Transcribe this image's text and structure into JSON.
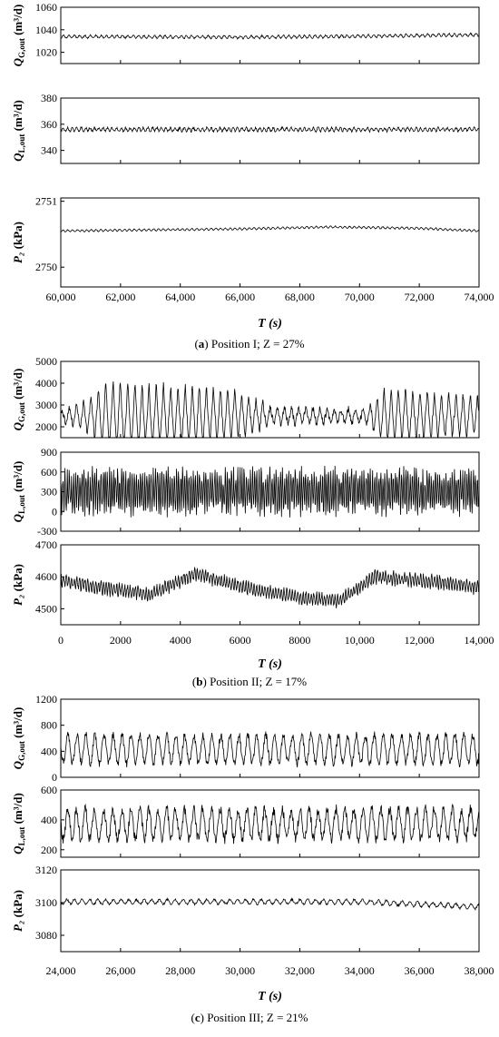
{
  "chart_data": [
    {
      "type": "line",
      "panel": "a",
      "caption": {
        "letter": "a",
        "text": "Position I; Z = 27%"
      },
      "xlabel": "T (s)",
      "xlim": [
        60000,
        74000
      ],
      "xticks": [
        "60,000",
        "62,000",
        "64,000",
        "66,000",
        "68,000",
        "70,000",
        "72,000",
        "74,000"
      ],
      "xtick_values": [
        60000,
        62000,
        64000,
        66000,
        68000,
        70000,
        72000,
        74000
      ],
      "subplots": [
        {
          "ylabel": "Q_G,out (m³/d)",
          "ylim": [
            1010,
            1060
          ],
          "yticks": [
            1020,
            1040,
            1060
          ],
          "ytick_labels": [
            "1020",
            "1040",
            "1060"
          ],
          "series": {
            "mean": 1034,
            "amplitude": 1.2,
            "period": 180,
            "noise": 0.6,
            "drift": [
              [
                60000,
                1034
              ],
              [
                66000,
                1033.5
              ],
              [
                69000,
                1034
              ],
              [
                74000,
                1035.5
              ]
            ]
          }
        },
        {
          "ylabel": "Q_L,out (m³/d)",
          "ylim": [
            330,
            380
          ],
          "yticks": [
            340,
            360,
            380
          ],
          "ytick_labels": [
            "340",
            "360",
            "380"
          ],
          "series": {
            "mean": 356,
            "amplitude": 1.3,
            "period": 150,
            "noise": 0.8,
            "drift": [
              [
                60000,
                356
              ],
              [
                74000,
                356
              ]
            ]
          }
        },
        {
          "ylabel": "P₂ (kPa)",
          "ylim": [
            2749.7,
            2751.05
          ],
          "yticks": [
            2750,
            2751
          ],
          "ytick_labels": [
            "2750",
            "2751"
          ],
          "series": {
            "mean": 2750.55,
            "amplitude": 0.015,
            "period": 160,
            "noise": 0.005,
            "drift": [
              [
                60000,
                2750.55
              ],
              [
                66000,
                2750.58
              ],
              [
                69000,
                2750.61
              ],
              [
                72000,
                2750.59
              ],
              [
                74000,
                2750.55
              ]
            ]
          }
        }
      ]
    },
    {
      "type": "line",
      "panel": "b",
      "caption": {
        "letter": "b",
        "text": "Position II; Z = 17%"
      },
      "xlabel": "T (s)",
      "xlim": [
        0,
        14000
      ],
      "xticks": [
        "0",
        "2000",
        "4000",
        "6000",
        "8000",
        "10,000",
        "12,000",
        "14,000"
      ],
      "xtick_values": [
        0,
        2000,
        4000,
        6000,
        8000,
        10000,
        12000,
        14000
      ],
      "subplots": [
        {
          "ylabel": "Q_G,out (m³/d)",
          "ylim": [
            1500,
            5000
          ],
          "yticks": [
            2000,
            3000,
            4000,
            5000
          ],
          "ytick_labels": [
            "2000",
            "3000",
            "4000",
            "5000"
          ],
          "series": {
            "mean": 2500,
            "amplitude": 1600,
            "period": 240,
            "noise": 150,
            "drift": [
              [
                0,
                2500
              ],
              [
                14000,
                2500
              ]
            ],
            "envelope": [
              [
                0,
                0.15
              ],
              [
                800,
                0.4
              ],
              [
                1500,
                0.95
              ],
              [
                5500,
                0.8
              ],
              [
                7200,
                0.25
              ],
              [
                10200,
                0.2
              ],
              [
                10800,
                0.75
              ],
              [
                14000,
                0.55
              ]
            ]
          }
        },
        {
          "ylabel": "Q_L,out (m³/d)",
          "ylim": [
            -300,
            900
          ],
          "yticks": [
            -300,
            0,
            300,
            600,
            900
          ],
          "ytick_labels": [
            "-300",
            "0",
            "300",
            "600",
            "900"
          ],
          "series": {
            "mean": 300,
            "amplitude": 280,
            "period": 70,
            "noise": 120,
            "drift": [
              [
                0,
                300
              ],
              [
                14000,
                300
              ]
            ]
          }
        },
        {
          "ylabel": "P₂ (kPa)",
          "ylim": [
            4450,
            4700
          ],
          "yticks": [
            4500,
            4600,
            4700
          ],
          "ytick_labels": [
            "4500",
            "4600",
            "4700"
          ],
          "series": {
            "mean": 4560,
            "amplitude": 18,
            "period": 90,
            "noise": 8,
            "drift": [
              [
                0,
                4590
              ],
              [
                1000,
                4570
              ],
              [
                3000,
                4545
              ],
              [
                4500,
                4610
              ],
              [
                6000,
                4570
              ],
              [
                8000,
                4535
              ],
              [
                9300,
                4525
              ],
              [
                10500,
                4600
              ],
              [
                12500,
                4585
              ],
              [
                14000,
                4565
              ]
            ]
          }
        }
      ]
    },
    {
      "type": "line",
      "panel": "c",
      "caption": {
        "letter": "c",
        "text": "Position III; Z = 21%"
      },
      "xlabel": "T (s)",
      "xlim": [
        24000,
        38000
      ],
      "xticks": [
        "24,000",
        "26,000",
        "28,000",
        "30,000",
        "32,000",
        "34,000",
        "36,000",
        "38,000"
      ],
      "xtick_values": [
        24000,
        26000,
        28000,
        30000,
        32000,
        34000,
        36000,
        38000
      ],
      "subplots": [
        {
          "ylabel": "Q_G,out (m³/d)",
          "ylim": [
            0,
            1200
          ],
          "yticks": [
            0,
            400,
            800,
            1200
          ],
          "ytick_labels": [
            "0",
            "400",
            "800",
            "1200"
          ],
          "series": {
            "mean": 430,
            "amplitude": 220,
            "period": 300,
            "noise": 60,
            "drift": [
              [
                24000,
                430
              ],
              [
                38000,
                430
              ]
            ]
          }
        },
        {
          "ylabel": "Q_L,out (m³/d)",
          "ylim": [
            150,
            600
          ],
          "yticks": [
            200,
            400,
            600
          ],
          "ytick_labels": [
            "200",
            "400",
            "600"
          ],
          "series": {
            "mean": 370,
            "amplitude": 100,
            "period": 300,
            "noise": 35,
            "drift": [
              [
                24000,
                370
              ],
              [
                38000,
                370
              ]
            ]
          }
        },
        {
          "ylabel": "P₂ (kPa)",
          "ylim": [
            3070,
            3120
          ],
          "yticks": [
            3080,
            3100,
            3120
          ],
          "ytick_labels": [
            "3080",
            "3100",
            "3120"
          ],
          "series": {
            "mean": 3100,
            "amplitude": 1.4,
            "period": 260,
            "noise": 0.6,
            "drift": [
              [
                24000,
                3100.5
              ],
              [
                34000,
                3100.5
              ],
              [
                38000,
                3097.5
              ]
            ]
          }
        }
      ]
    }
  ]
}
